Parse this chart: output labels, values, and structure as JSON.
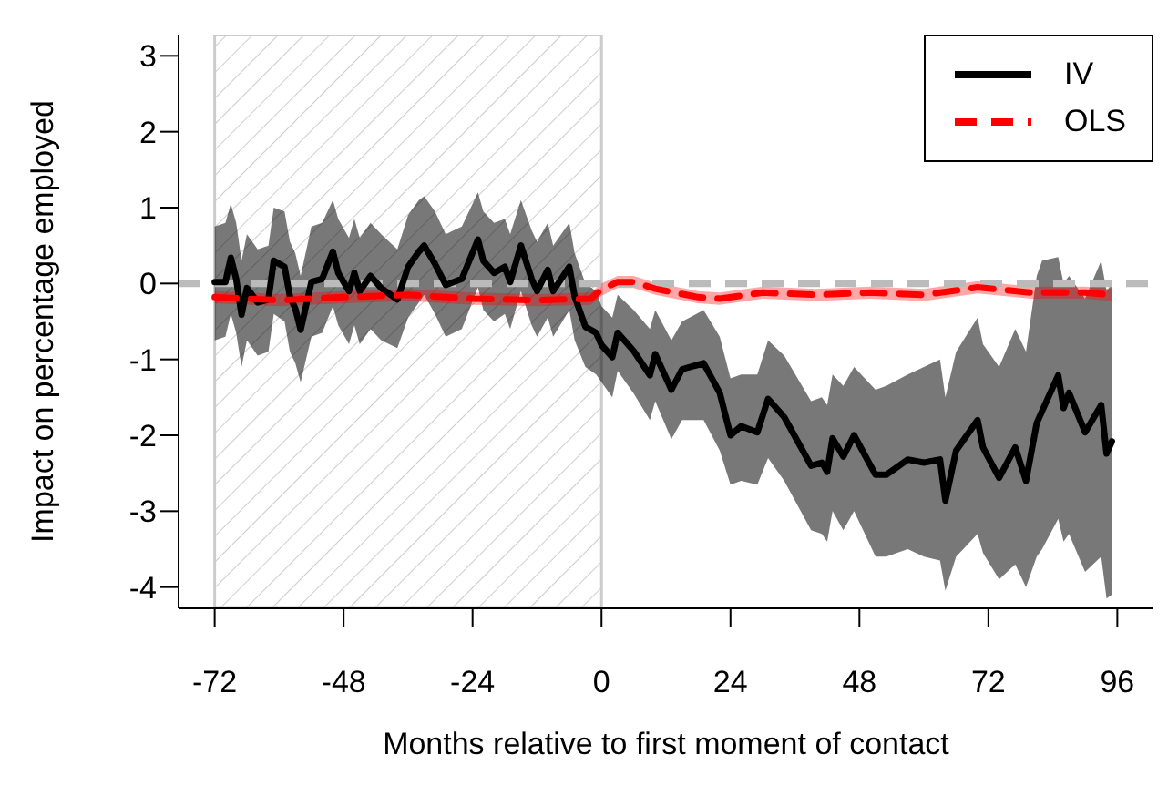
{
  "chart_data": {
    "type": "line",
    "xlabel": "Months relative to first moment of contact",
    "ylabel": "Impact on percentage employed",
    "xlim": [
      -78.72,
      102.72
    ],
    "xticks": [
      -72,
      -48,
      -24,
      0,
      24,
      48,
      72,
      96
    ],
    "ylim": [
      -4.28,
      3.28
    ],
    "yticks": [
      -4,
      -3,
      -2,
      -1,
      0,
      1,
      2,
      3
    ],
    "grid": false,
    "legend": "top right",
    "marker": "none",
    "bands": [
      {
        "axis": "x",
        "from": -72,
        "to": 0,
        "color": "#cccccc"
      }
    ],
    "ref_lines": [
      {
        "axis": "y",
        "value": 0,
        "color": "#bbbbbb",
        "line_style": "dashed"
      }
    ],
    "series": [
      {
        "name": "IV",
        "color": "#000000",
        "line_style": "solid",
        "x": [
          -72,
          -70,
          -69,
          -68,
          -67,
          -66,
          -64,
          -62,
          -61,
          -59,
          -58,
          -57,
          -56,
          -54,
          -52,
          -50,
          -49,
          -47,
          -46,
          -45,
          -43,
          -41,
          -38,
          -36,
          -34,
          -33,
          -31,
          -29,
          -26,
          -23,
          -22,
          -20,
          -18,
          -17,
          -15,
          -13,
          -12,
          -10,
          -9,
          -6,
          -5,
          -3,
          -1,
          0,
          2,
          3,
          6,
          9,
          10,
          13,
          15,
          19,
          22,
          24,
          26,
          29,
          31,
          34,
          39,
          41,
          42,
          43,
          45,
          47,
          51,
          53,
          57,
          60,
          63,
          64,
          66,
          70,
          71,
          74,
          77,
          79,
          81,
          82,
          85,
          86,
          87,
          90,
          93,
          94,
          95
        ],
        "values": [
          0.02,
          0.02,
          0.34,
          0.06,
          -0.41,
          -0.06,
          -0.25,
          -0.21,
          0.3,
          0.22,
          -0.17,
          -0.33,
          -0.61,
          0.02,
          0.06,
          0.42,
          0.14,
          -0.1,
          0.14,
          -0.1,
          0.1,
          -0.06,
          -0.21,
          0.22,
          0.42,
          0.5,
          0.26,
          -0.02,
          0.06,
          0.58,
          0.3,
          0.14,
          0.22,
          0.02,
          0.5,
          0.06,
          -0.1,
          0.18,
          -0.1,
          0.22,
          -0.17,
          -0.57,
          -0.65,
          -0.81,
          -0.97,
          -0.65,
          -0.89,
          -1.21,
          -0.93,
          -1.4,
          -1.13,
          -1.05,
          -1.44,
          -2.0,
          -1.88,
          -1.96,
          -1.52,
          -1.76,
          -2.4,
          -2.36,
          -2.48,
          -2.04,
          -2.28,
          -2.0,
          -2.52,
          -2.52,
          -2.32,
          -2.36,
          -2.32,
          -2.86,
          -2.2,
          -1.8,
          -2.16,
          -2.56,
          -2.16,
          -2.6,
          -1.84,
          -1.68,
          -1.21,
          -1.64,
          -1.44,
          -1.96,
          -1.6,
          -2.24,
          -2.08
        ],
        "upper": [
          0.75,
          0.8,
          1.05,
          0.8,
          0.3,
          0.65,
          0.45,
          0.5,
          1.0,
          0.95,
          0.55,
          0.4,
          0.1,
          0.75,
          0.8,
          1.1,
          0.85,
          0.6,
          0.85,
          0.6,
          0.8,
          0.65,
          0.45,
          0.9,
          1.1,
          1.15,
          0.95,
          0.65,
          0.75,
          1.2,
          0.95,
          0.8,
          0.85,
          0.65,
          1.1,
          0.7,
          0.55,
          0.8,
          0.5,
          0.8,
          0.4,
          0.0,
          -0.1,
          -0.3,
          -0.45,
          -0.15,
          -0.35,
          -0.6,
          -0.35,
          -0.75,
          -0.5,
          -0.35,
          -0.7,
          -1.25,
          -1.2,
          -1.2,
          -0.75,
          -0.95,
          -1.55,
          -1.5,
          -1.6,
          -1.2,
          -1.35,
          -1.1,
          -1.4,
          -1.35,
          -1.2,
          -1.1,
          -1.0,
          -1.5,
          -0.9,
          -0.45,
          -0.8,
          -1.1,
          -0.6,
          -0.9,
          0.1,
          0.3,
          0.35,
          0.0,
          0.1,
          -0.2,
          0.3,
          -0.1,
          0.0
        ],
        "lower": [
          -0.75,
          -0.7,
          -0.4,
          -0.65,
          -1.1,
          -0.75,
          -0.95,
          -0.9,
          -0.4,
          -0.5,
          -0.9,
          -1.05,
          -1.3,
          -0.7,
          -0.65,
          -0.3,
          -0.55,
          -0.8,
          -0.55,
          -0.8,
          -0.6,
          -0.75,
          -0.85,
          -0.45,
          -0.25,
          -0.15,
          -0.4,
          -0.7,
          -0.6,
          -0.05,
          -0.35,
          -0.5,
          -0.4,
          -0.6,
          -0.1,
          -0.55,
          -0.7,
          -0.45,
          -0.7,
          -0.35,
          -0.75,
          -1.1,
          -1.2,
          -1.3,
          -1.5,
          -1.15,
          -1.45,
          -1.8,
          -1.55,
          -2.05,
          -1.8,
          -1.8,
          -2.2,
          -2.65,
          -2.6,
          -2.65,
          -2.3,
          -2.6,
          -3.25,
          -3.3,
          -3.4,
          -3.0,
          -3.25,
          -3.0,
          -3.6,
          -3.6,
          -3.5,
          -3.6,
          -3.65,
          -4.05,
          -3.6,
          -3.3,
          -3.55,
          -3.9,
          -3.7,
          -4.0,
          -3.6,
          -3.5,
          -3.1,
          -3.4,
          -3.3,
          -3.8,
          -3.6,
          -4.15,
          -4.1
        ]
      },
      {
        "name": "OLS",
        "color": "#ff0000",
        "line_style": "dashed",
        "x": [
          -72,
          -60,
          -48,
          -36,
          -24,
          -12,
          -2,
          0,
          3,
          6,
          10,
          18,
          22,
          30,
          40,
          50,
          60,
          70,
          80,
          90,
          95
        ],
        "values": [
          -0.18,
          -0.22,
          -0.18,
          -0.15,
          -0.2,
          -0.22,
          -0.2,
          -0.08,
          0.02,
          0.02,
          -0.07,
          -0.18,
          -0.2,
          -0.12,
          -0.15,
          -0.12,
          -0.15,
          -0.05,
          -0.12,
          -0.12,
          -0.15
        ],
        "upper": [
          -0.1,
          -0.14,
          -0.1,
          -0.07,
          -0.12,
          -0.14,
          -0.12,
          0.0,
          0.1,
          0.1,
          0.01,
          -0.1,
          -0.12,
          -0.04,
          -0.07,
          -0.04,
          -0.07,
          0.03,
          -0.04,
          -0.04,
          -0.07
        ],
        "lower": [
          -0.26,
          -0.3,
          -0.26,
          -0.23,
          -0.28,
          -0.3,
          -0.28,
          -0.16,
          -0.06,
          -0.06,
          -0.15,
          -0.26,
          -0.28,
          -0.2,
          -0.23,
          -0.2,
          -0.23,
          -0.13,
          -0.2,
          -0.2,
          -0.23
        ]
      }
    ]
  }
}
